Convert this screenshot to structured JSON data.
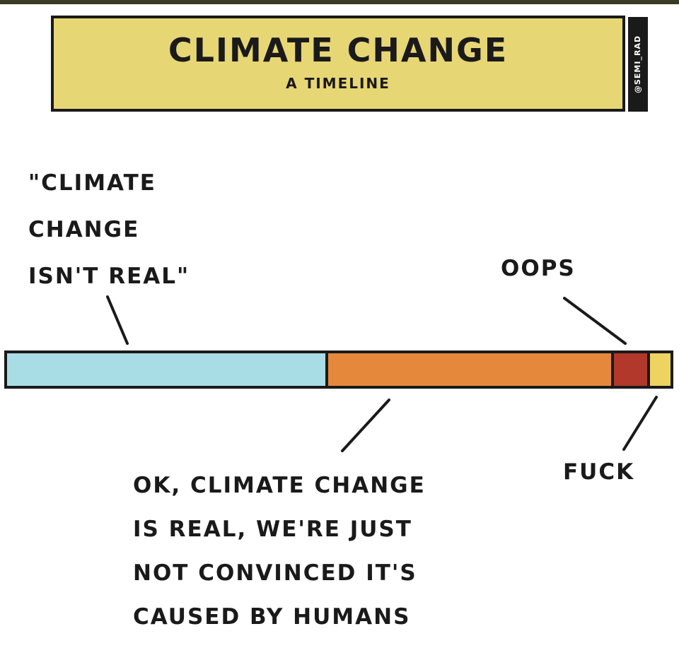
{
  "header": {
    "title": "CLIMATE CHANGE",
    "subtitle": "A TIMELINE",
    "credit": "@SEMI_RAD"
  },
  "labels": {
    "denial_lines": [
      "\"CLIMATE",
      "CHANGE",
      "ISN'T REAL\""
    ],
    "oops": "OOPS",
    "convinced_lines": [
      "OK, CLIMATE CHANGE",
      "IS REAL, WE'RE JUST",
      "NOT CONVINCED IT'S",
      "CAUSED BY HUMANS"
    ],
    "fuck": "FUCK"
  },
  "timeline": {
    "segments": [
      {
        "fraction": 0.48,
        "color": "#a9dde6"
      },
      {
        "fraction": 0.43,
        "color": "#e6883c"
      },
      {
        "fraction": 0.055,
        "color": "#b1382a"
      },
      {
        "fraction": 0.035,
        "color": "#edd35f"
      }
    ]
  }
}
